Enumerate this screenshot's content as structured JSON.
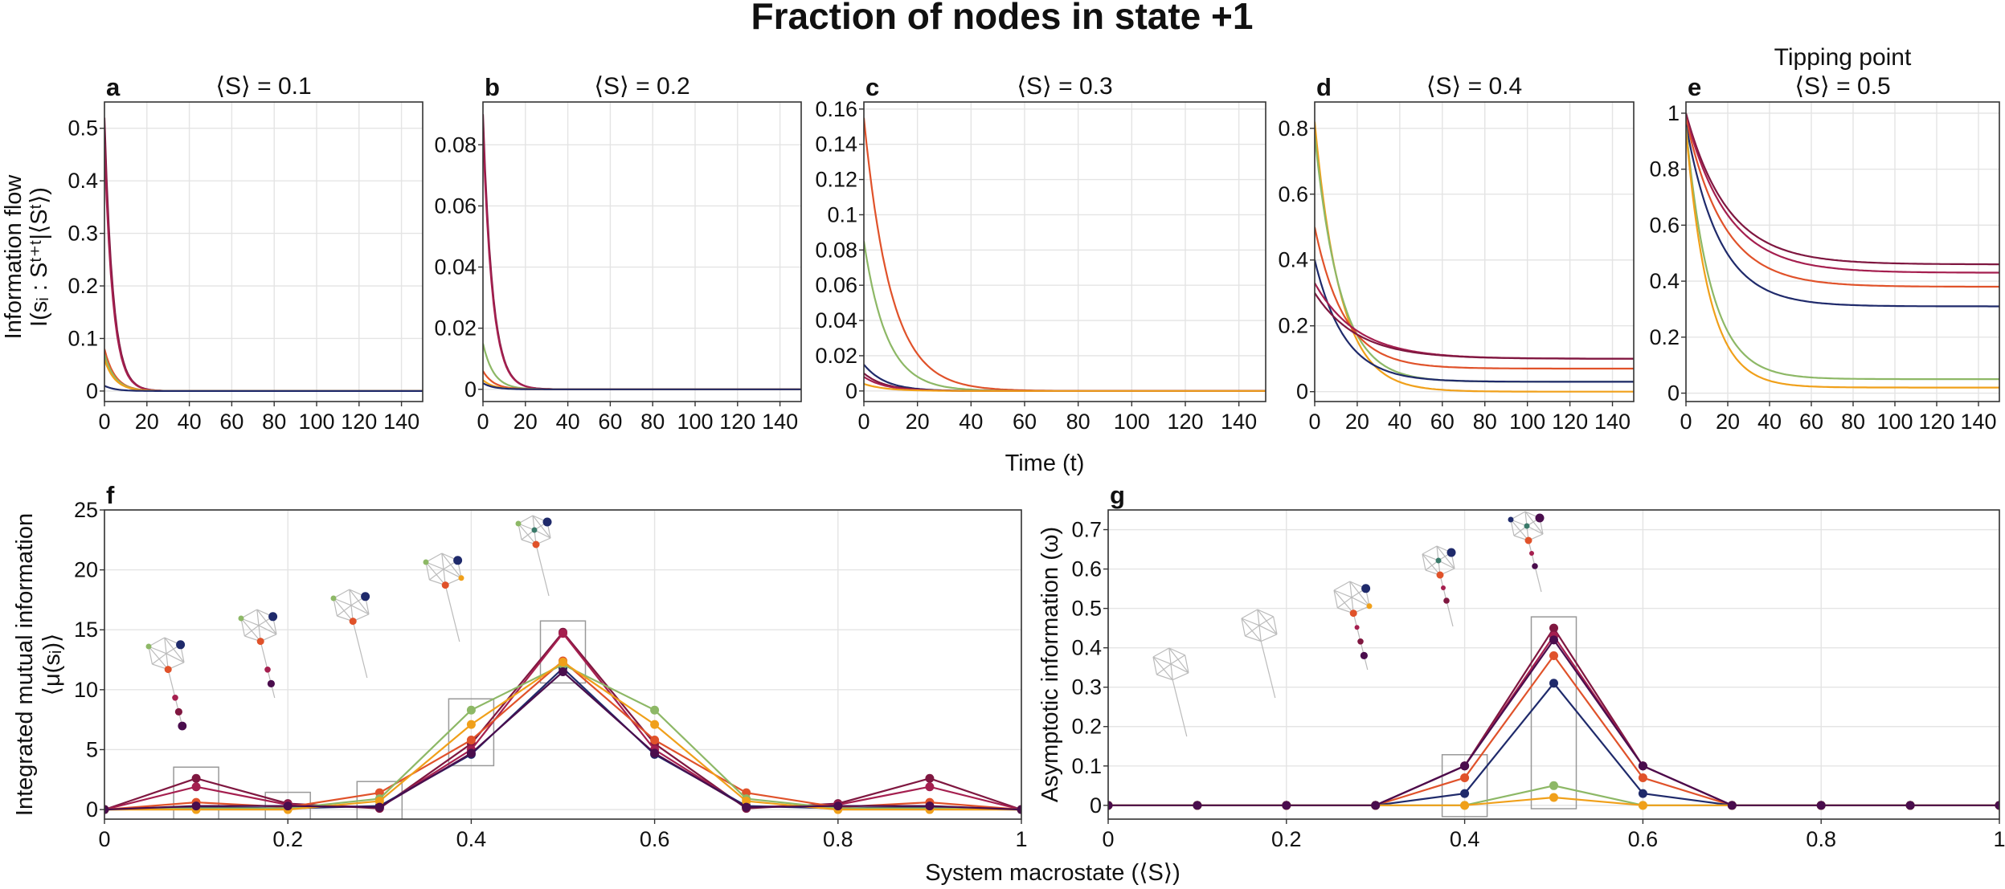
{
  "figure": {
    "title": "Fraction of nodes in state +1",
    "shared_xlabel_top": "Time (t)",
    "shared_xlabel_bottom": "System macrostate (⟨S⟩)",
    "ylabel_top_line1": "Information flow",
    "ylabel_top_line2": "I(sᵢ : Sᵗ⁺ᵗ|⟨Sᵗ⟩)",
    "colors": {
      "series1": "#7f1740",
      "series2": "#a51f4f",
      "series3": "#e0522a",
      "series4": "#1f2a6b",
      "series5": "#8db866",
      "series6": "#f0a01a",
      "series7": "#4a0d4d",
      "highlight_box": "#999999"
    }
  },
  "chart_data": [
    {
      "type": "line",
      "panel": "a",
      "title": "⟨S⟩ = 0.1",
      "xlim": [
        0,
        150
      ],
      "ylim": [
        -0.02,
        0.55
      ],
      "xticks": [
        0,
        20,
        40,
        60,
        80,
        100,
        120,
        140
      ],
      "yticks": [
        0,
        0.1,
        0.2,
        0.3,
        0.4,
        0.5
      ],
      "ytick_labels": [
        "0",
        "0.1",
        "0.2",
        "0.3",
        "0.4",
        "0.5"
      ],
      "grid": true,
      "series": [
        {
          "color": "series1",
          "start": 0.52,
          "end": 0,
          "tau": 4.0
        },
        {
          "color": "series2",
          "start": 0.47,
          "end": 0,
          "tau": 4.0
        },
        {
          "color": "series3",
          "start": 0.08,
          "end": 0,
          "tau": 5.0
        },
        {
          "color": "series5",
          "start": 0.07,
          "end": 0,
          "tau": 5.0
        },
        {
          "color": "series6",
          "start": 0.06,
          "end": 0,
          "tau": 5.0
        },
        {
          "color": "series4",
          "start": 0.01,
          "end": 0,
          "tau": 5.0
        }
      ]
    },
    {
      "type": "line",
      "panel": "b",
      "title": "⟨S⟩ = 0.2",
      "xlim": [
        0,
        150
      ],
      "ylim": [
        -0.004,
        0.094
      ],
      "xticks": [
        0,
        20,
        40,
        60,
        80,
        100,
        120,
        140
      ],
      "yticks": [
        0,
        0.02,
        0.04,
        0.06,
        0.08
      ],
      "ytick_labels": [
        "0",
        "0.02",
        "0.04",
        "0.06",
        "0.08"
      ],
      "grid": true,
      "series": [
        {
          "color": "series1",
          "start": 0.09,
          "end": 0,
          "tau": 4.5
        },
        {
          "color": "series2",
          "start": 0.085,
          "end": 0,
          "tau": 4.5
        },
        {
          "color": "series5",
          "start": 0.015,
          "end": 0,
          "tau": 5.0
        },
        {
          "color": "series3",
          "start": 0.006,
          "end": 0,
          "tau": 5.0
        },
        {
          "color": "series6",
          "start": 0.003,
          "end": 0,
          "tau": 5.0
        },
        {
          "color": "series4",
          "start": 0.002,
          "end": 0,
          "tau": 5.0
        }
      ]
    },
    {
      "type": "line",
      "panel": "c",
      "title": "⟨S⟩ = 0.3",
      "xlim": [
        0,
        150
      ],
      "ylim": [
        -0.006,
        0.164
      ],
      "xticks": [
        0,
        20,
        40,
        60,
        80,
        100,
        120,
        140
      ],
      "yticks": [
        0,
        0.02,
        0.04,
        0.06,
        0.08,
        0.1,
        0.12,
        0.14,
        0.16
      ],
      "ytick_labels": [
        "0",
        "0.02",
        "0.04",
        "0.06",
        "0.08",
        "0.1",
        "0.12",
        "0.14",
        "0.16"
      ],
      "grid": true,
      "series": [
        {
          "color": "series3",
          "start": 0.155,
          "end": 0,
          "tau": 10.0
        },
        {
          "color": "series5",
          "start": 0.085,
          "end": 0,
          "tau": 8.5
        },
        {
          "color": "series4",
          "start": 0.015,
          "end": 0,
          "tau": 8.0
        },
        {
          "color": "series1",
          "start": 0.01,
          "end": 0,
          "tau": 8.0
        },
        {
          "color": "series2",
          "start": 0.008,
          "end": 0,
          "tau": 8.0
        },
        {
          "color": "series6",
          "start": 0.004,
          "end": 0,
          "tau": 8.0
        }
      ]
    },
    {
      "type": "line",
      "panel": "d",
      "title": "⟨S⟩ = 0.4",
      "xlim": [
        0,
        150
      ],
      "ylim": [
        -0.03,
        0.88
      ],
      "xticks": [
        0,
        20,
        40,
        60,
        80,
        100,
        120,
        140
      ],
      "yticks": [
        0,
        0.2,
        0.4,
        0.6,
        0.8
      ],
      "ytick_labels": [
        "0",
        "0.2",
        "0.4",
        "0.6",
        "0.8"
      ],
      "grid": true,
      "series": [
        {
          "color": "series6",
          "start": 0.82,
          "end": 0.0,
          "tau": 12.0
        },
        {
          "color": "series5",
          "start": 0.78,
          "end": 0.03,
          "tau": 12.0
        },
        {
          "color": "series3",
          "start": 0.5,
          "end": 0.07,
          "tau": 14.0
        },
        {
          "color": "series4",
          "start": 0.4,
          "end": 0.03,
          "tau": 14.0
        },
        {
          "color": "series2",
          "start": 0.33,
          "end": 0.1,
          "tau": 20.0
        },
        {
          "color": "series1",
          "start": 0.3,
          "end": 0.1,
          "tau": 20.0
        }
      ]
    },
    {
      "type": "line",
      "panel": "e",
      "title_line1": "Tipping point",
      "title": "⟨S⟩ = 0.5",
      "xlim": [
        0,
        150
      ],
      "ylim": [
        -0.03,
        1.04
      ],
      "xticks": [
        0,
        20,
        40,
        60,
        80,
        100,
        120,
        140
      ],
      "yticks": [
        0,
        0.2,
        0.4,
        0.6,
        0.8,
        1
      ],
      "ytick_labels": [
        "0",
        "0.2",
        "0.4",
        "0.6",
        "0.8",
        "1"
      ],
      "grid": true,
      "series": [
        {
          "color": "series1",
          "start": 1.0,
          "end": 0.46,
          "tau": 20.0
        },
        {
          "color": "series2",
          "start": 0.99,
          "end": 0.43,
          "tau": 20.0
        },
        {
          "color": "series3",
          "start": 0.98,
          "end": 0.38,
          "tau": 18.0
        },
        {
          "color": "series4",
          "start": 0.96,
          "end": 0.31,
          "tau": 16.0
        },
        {
          "color": "series5",
          "start": 0.95,
          "end": 0.05,
          "tau": 12.0
        },
        {
          "color": "series6",
          "start": 0.94,
          "end": 0.02,
          "tau": 11.0
        }
      ]
    },
    {
      "type": "line",
      "panel": "f",
      "xlabel": "",
      "ylabel_line1": "Integrated mutual information",
      "ylabel_line2": "⟨μ(sᵢ)⟩",
      "xlim": [
        0,
        1
      ],
      "ylim": [
        -0.8,
        25
      ],
      "xticks": [
        0,
        0.2,
        0.4,
        0.6,
        0.8,
        1
      ],
      "xtick_labels": [
        "0",
        "0.2",
        "0.4",
        "0.6",
        "0.8",
        "1"
      ],
      "yticks": [
        0,
        5,
        10,
        15,
        20,
        25
      ],
      "ytick_labels": [
        "0",
        "5",
        "10",
        "15",
        "20",
        "25"
      ],
      "grid": true,
      "x": [
        0,
        0.1,
        0.2,
        0.3,
        0.4,
        0.5,
        0.6,
        0.7,
        0.8,
        0.9,
        1.0
      ],
      "series": [
        {
          "color": "series1",
          "values": [
            0,
            2.6,
            0.5,
            0.1,
            5.5,
            14.8,
            5.5,
            0.1,
            0.5,
            2.6,
            0
          ]
        },
        {
          "color": "series2",
          "values": [
            0,
            1.9,
            0.4,
            0.2,
            5.0,
            14.7,
            5.0,
            0.2,
            0.4,
            1.9,
            0
          ]
        },
        {
          "color": "series3",
          "values": [
            0,
            0.6,
            0.2,
            1.4,
            5.8,
            12.4,
            5.8,
            1.4,
            0.2,
            0.6,
            0
          ]
        },
        {
          "color": "series4",
          "values": [
            0,
            0.2,
            0.1,
            0.3,
            4.6,
            11.8,
            4.6,
            0.3,
            0.1,
            0.2,
            0
          ]
        },
        {
          "color": "series5",
          "values": [
            0,
            0.1,
            0.1,
            0.9,
            8.3,
            12.1,
            8.3,
            0.9,
            0.1,
            0.1,
            0
          ]
        },
        {
          "color": "series6",
          "values": [
            0,
            0.0,
            0.0,
            0.7,
            7.1,
            12.3,
            7.1,
            0.7,
            0.0,
            0.0,
            0
          ]
        },
        {
          "color": "series7",
          "values": [
            0,
            0.3,
            0.3,
            0.2,
            4.7,
            11.5,
            4.7,
            0.2,
            0.3,
            0.3,
            0
          ]
        }
      ],
      "highlight_x": [
        0.1,
        0.2,
        0.3,
        0.4,
        0.5
      ]
    },
    {
      "type": "line",
      "panel": "g",
      "xlabel": "",
      "ylabel": "Asymptotic information (ω)",
      "xlim": [
        0,
        1
      ],
      "ylim": [
        -0.035,
        0.75
      ],
      "xticks": [
        0,
        0.2,
        0.4,
        0.6,
        0.8,
        1
      ],
      "xtick_labels": [
        "0",
        "0.2",
        "0.4",
        "0.6",
        "0.8",
        "1"
      ],
      "yticks": [
        0,
        0.1,
        0.2,
        0.3,
        0.4,
        0.5,
        0.6,
        0.7
      ],
      "ytick_labels": [
        "0",
        "0.1",
        "0.2",
        "0.3",
        "0.4",
        "0.5",
        "0.6",
        "0.7"
      ],
      "grid": true,
      "x": [
        0,
        0.1,
        0.2,
        0.3,
        0.4,
        0.5,
        0.6,
        0.7,
        0.8,
        0.9,
        1.0
      ],
      "series": [
        {
          "color": "series1",
          "values": [
            0,
            0,
            0,
            0,
            0.1,
            0.45,
            0.1,
            0,
            0,
            0,
            0
          ]
        },
        {
          "color": "series2",
          "values": [
            0,
            0,
            0,
            0,
            0.1,
            0.43,
            0.1,
            0,
            0,
            0,
            0
          ]
        },
        {
          "color": "series3",
          "values": [
            0,
            0,
            0,
            0,
            0.07,
            0.38,
            0.07,
            0,
            0,
            0,
            0
          ]
        },
        {
          "color": "series4",
          "values": [
            0,
            0,
            0,
            0,
            0.03,
            0.31,
            0.03,
            0,
            0,
            0,
            0
          ]
        },
        {
          "color": "series5",
          "values": [
            0,
            0,
            0,
            0,
            0.0,
            0.05,
            0.0,
            0,
            0,
            0,
            0
          ]
        },
        {
          "color": "series6",
          "values": [
            0,
            0,
            0,
            0,
            0.0,
            0.02,
            0.0,
            0,
            0,
            0,
            0
          ]
        },
        {
          "color": "series7",
          "values": [
            0,
            0,
            0,
            0,
            0.1,
            0.42,
            0.1,
            0,
            0,
            0,
            0
          ]
        }
      ],
      "highlight_x": [
        0.4,
        0.5
      ]
    }
  ]
}
